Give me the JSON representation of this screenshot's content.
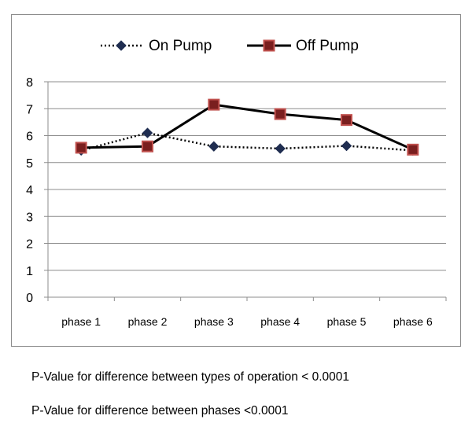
{
  "chart_data": {
    "type": "line",
    "categories": [
      "phase 1",
      "phase 2",
      "phase 3",
      "phase 4",
      "phase 5",
      "phase 6"
    ],
    "ylim": [
      0,
      8
    ],
    "yticks": [
      0,
      1,
      2,
      3,
      4,
      5,
      6,
      7,
      8
    ],
    "grid": true,
    "legend_position": "top",
    "series": [
      {
        "name": "On Pump",
        "values": [
          5.45,
          6.1,
          5.6,
          5.52,
          5.62,
          5.45
        ],
        "color": "#000000",
        "marker": "diamond",
        "marker_color": "#1f2d50",
        "line_style": "dotted"
      },
      {
        "name": "Off Pump",
        "values": [
          5.55,
          5.6,
          7.15,
          6.8,
          6.58,
          5.48
        ],
        "color": "#000000",
        "marker": "square",
        "marker_color": "#7a1f1f",
        "marker_edge": "#c0504d",
        "line_style": "solid"
      }
    ]
  },
  "notes": {
    "operation_pvalue": "P-Value for difference between types of operation < 0.0001",
    "phases_pvalue": "P-Value for difference between phases <0.0001"
  }
}
